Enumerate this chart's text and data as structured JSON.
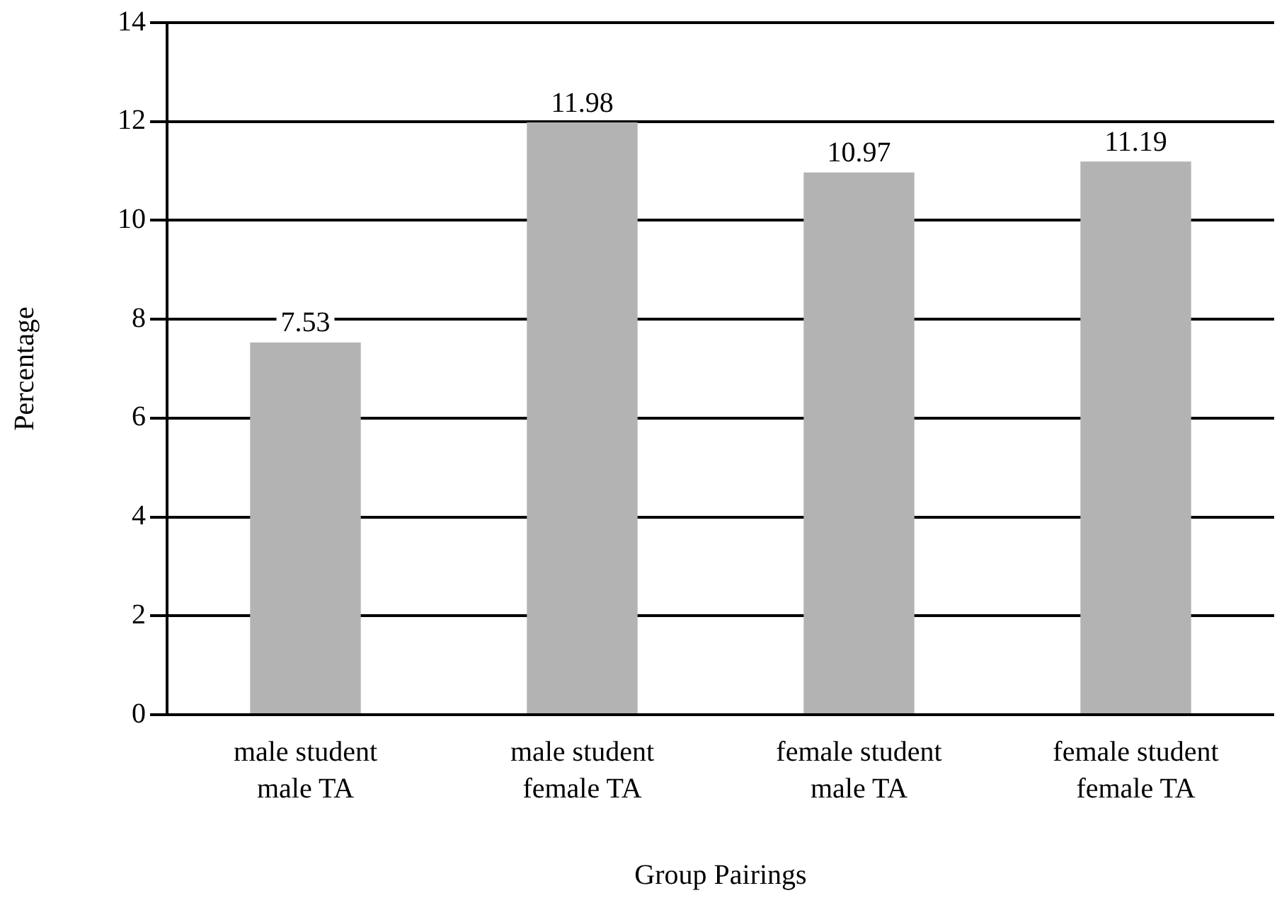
{
  "chart_data": {
    "type": "bar",
    "xlabel": "Group Pairings",
    "ylabel": "Percentage",
    "categories": [
      "male student\nmale TA",
      "male student\nfemale TA",
      "female student\nmale TA",
      "female student\nfemale TA"
    ],
    "values": [
      7.53,
      11.98,
      10.97,
      11.19
    ],
    "color": "#b3b3b3",
    "ylim": [
      0,
      14
    ],
    "yticks": [
      0,
      2,
      4,
      6,
      8,
      10,
      12,
      14
    ],
    "grid": "y",
    "legend": false,
    "data_labels": true
  }
}
